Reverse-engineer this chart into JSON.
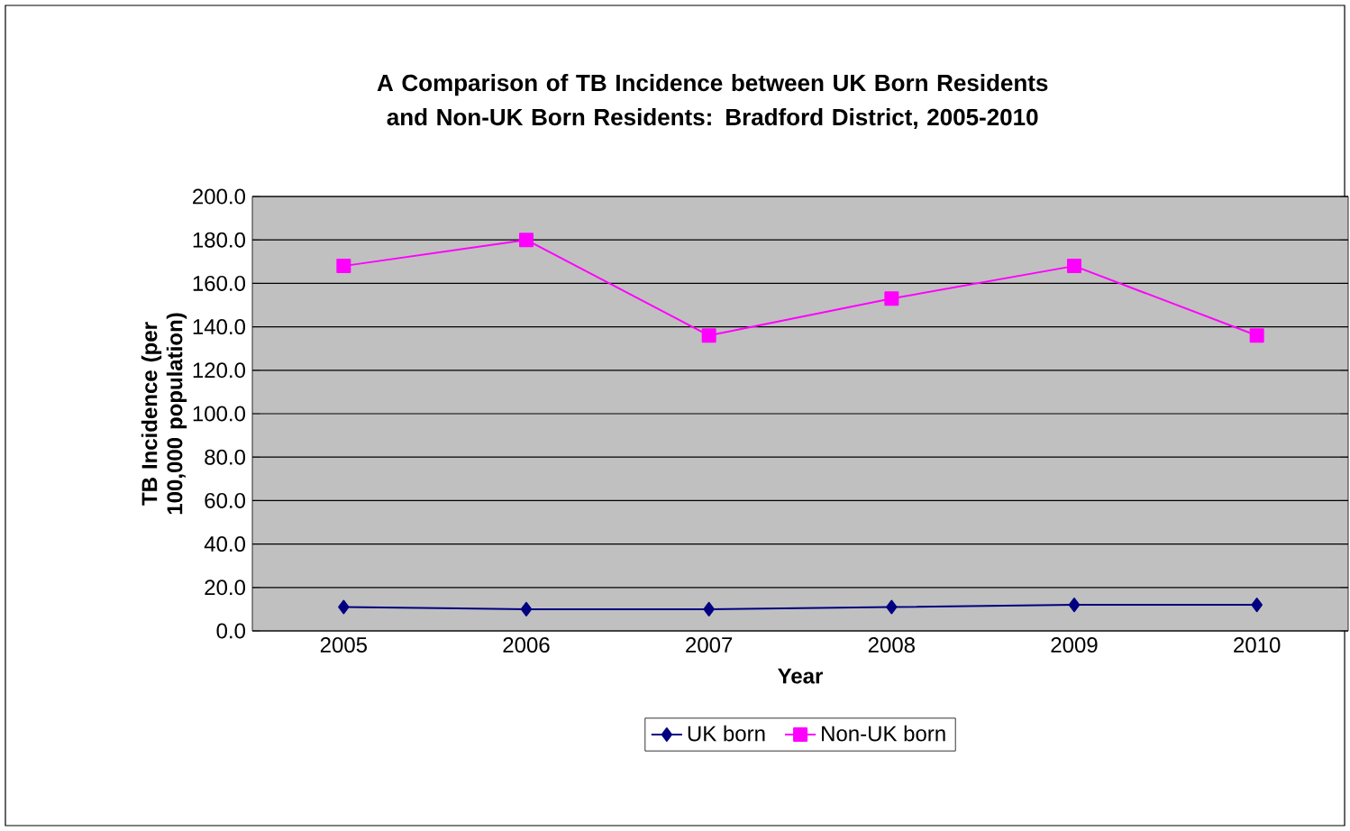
{
  "chart_data": {
    "type": "line",
    "title": "A Comparison of TB Incidence between UK Born Residents and Non-UK Born Residents: Bradford District, 2005-2010",
    "xlabel": "Year",
    "ylabel": "TB Incidence (per 100,000 population)",
    "categories": [
      "2005",
      "2006",
      "2007",
      "2008",
      "2009",
      "2010"
    ],
    "series": [
      {
        "name": "UK born",
        "color": "#000080",
        "marker": "diamond",
        "values": [
          11,
          10,
          10,
          11,
          12,
          12
        ]
      },
      {
        "name": "Non-UK born",
        "color": "#ff00ff",
        "marker": "square",
        "values": [
          168,
          180,
          136,
          153,
          168,
          136
        ]
      }
    ],
    "ylim": [
      0,
      200
    ],
    "yticks": [
      {
        "value": 0,
        "label": "0.0"
      },
      {
        "value": 20,
        "label": "20.0"
      },
      {
        "value": 40,
        "label": "40.0"
      },
      {
        "value": 60,
        "label": "60.0"
      },
      {
        "value": 80,
        "label": "80.0"
      },
      {
        "value": 100,
        "label": "100.0"
      },
      {
        "value": 120,
        "label": "120.0"
      },
      {
        "value": 140,
        "label": "140.0"
      },
      {
        "value": 160,
        "label": "160.0"
      },
      {
        "value": 180,
        "label": "180.0"
      },
      {
        "value": 200,
        "label": "200.0"
      }
    ],
    "grid": "y",
    "legend": "bottom",
    "line_style": "solid"
  }
}
